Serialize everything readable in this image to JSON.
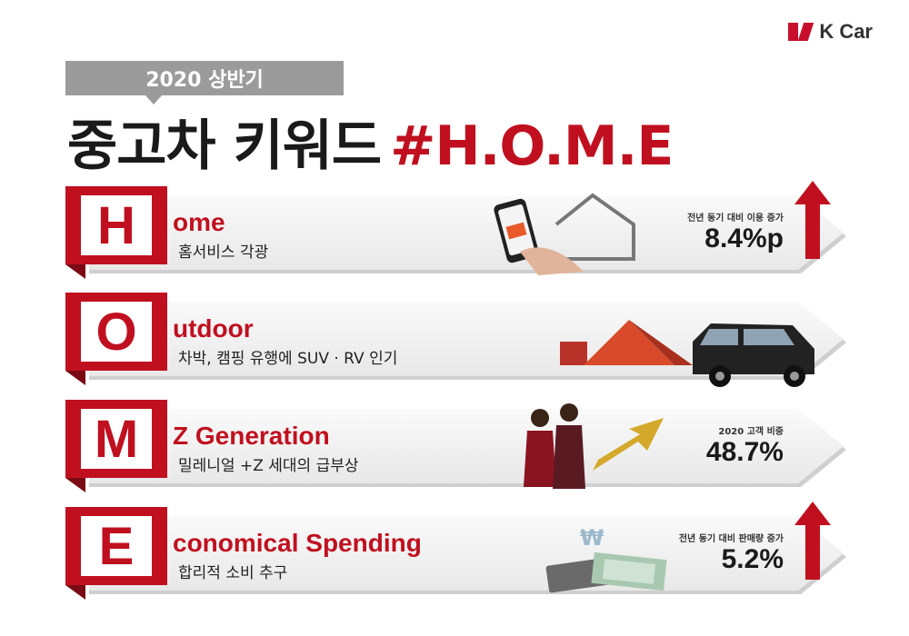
{
  "brand": {
    "name": "K Car"
  },
  "header": {
    "badge": "2020 상반기",
    "title_prefix": "중고차 키워드",
    "title_keyword": "#H.O.M.E"
  },
  "colors": {
    "accent": "#c0101f",
    "badge_gray": "#9b9b9b"
  },
  "items": [
    {
      "letter": "H",
      "word": "ome",
      "subtitle": "홈서비스 각광",
      "stat_caption": "전년 동기 대비 이용 증가",
      "stat_value": "8.4%p",
      "trend": "up",
      "illustration": "phone-house-icon"
    },
    {
      "letter": "O",
      "word": "utdoor",
      "subtitle": "차박, 캠핑 유행에 SUV · RV 인기",
      "stat_caption": "",
      "stat_value": "",
      "trend": "",
      "illustration": "tent-car-icon"
    },
    {
      "letter": "M",
      "word": "Z Generation",
      "subtitle": "밀레니얼 +Z 세대의 급부상",
      "stat_caption": "2020 고객 비중",
      "stat_value": "48.7%",
      "trend": "",
      "illustration": "people-growth-icon"
    },
    {
      "letter": "E",
      "word": "conomical Spending",
      "subtitle": "합리적 소비 추구",
      "stat_caption": "전년 동기 대비 판매량 증가",
      "stat_value": "5.2%",
      "trend": "up",
      "illustration": "money-calculator-icon"
    }
  ]
}
